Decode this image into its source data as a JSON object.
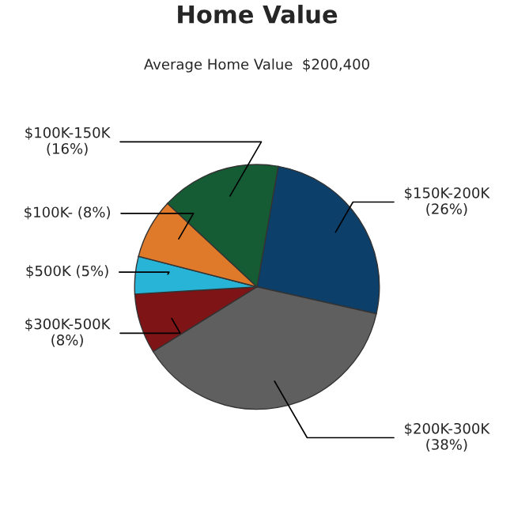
{
  "chart_data": {
    "type": "pie",
    "title": "Home Value",
    "subtitle": "Average Home Value  $200,400",
    "categories": [
      "$150K-200K",
      "$200K-300K",
      "$300K-500K",
      "$500K",
      "$100K-",
      "$100K-150K"
    ],
    "values": [
      26,
      38,
      8,
      5,
      8,
      16
    ],
    "value_labels": [
      "(26%)",
      "(38%)",
      "(8%)",
      "(5%)",
      "(8%)",
      "(16%)"
    ],
    "colors": [
      "#0d3f6b",
      "#5f5f5f",
      "#7f1416",
      "#27b4d6",
      "#e07a2b",
      "#155c35"
    ]
  }
}
